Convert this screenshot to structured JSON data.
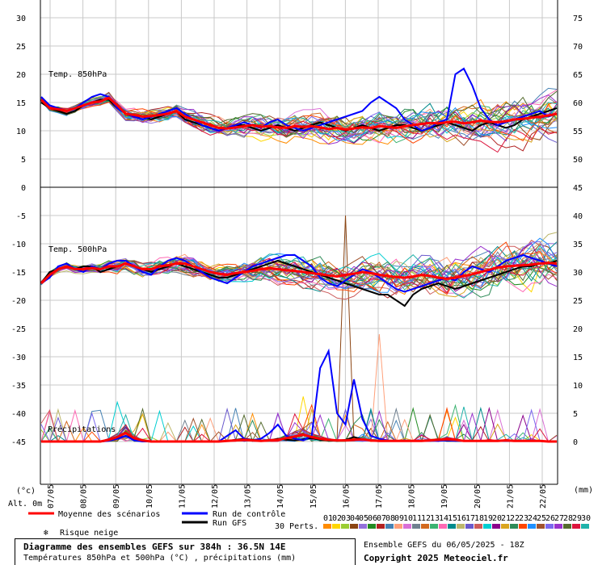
{
  "chart_data": {
    "type": "line",
    "title": "Diagramme des ensembles GEFS sur 384h : 36.5N 14E",
    "subtitle": "Températures 850hPa et 500hPa (°C) , précipitations (mm)",
    "run_info": "Ensemble GEFS du 06/05/2025 - 18Z",
    "copyright": "Copyright 2025 Meteociel.fr",
    "panel_labels": [
      "Temp. 850hPa",
      "Temp. 500hPa",
      "Précipitations"
    ],
    "left_axis": {
      "ticks": [
        30,
        25,
        20,
        15,
        10,
        5,
        0,
        -5,
        -10,
        -15,
        -20,
        -25,
        -30,
        -35,
        -40,
        -45
      ],
      "unit": "(°c)",
      "alt_label": "Alt. 0m"
    },
    "right_axis": {
      "ticks": [
        75,
        70,
        65,
        60,
        55,
        50,
        45,
        40,
        35,
        30,
        25,
        20,
        15,
        10,
        5,
        0
      ],
      "unit": "(mm)"
    },
    "x_dates": [
      "07/05",
      "08/05",
      "09/05",
      "10/05",
      "11/05",
      "12/05",
      "13/05",
      "14/05",
      "15/05",
      "16/05",
      "17/05",
      "18/05",
      "19/05",
      "20/05",
      "21/05",
      "22/05"
    ],
    "series": [
      {
        "name": "Moyenne des scénarios",
        "color": "#ff0000",
        "t850": [
          15.5,
          14,
          13.8,
          13.5,
          14,
          14.5,
          15,
          15.2,
          15.8,
          14.5,
          13,
          12.8,
          12.5,
          12.6,
          12.8,
          13,
          13.5,
          12.5,
          12,
          11.5,
          11,
          10.5,
          10.4,
          10.6,
          10.8,
          11,
          10.7,
          10.8,
          10.6,
          10.5,
          10.8,
          10.7,
          10.8,
          10.6,
          10.3,
          10.5,
          10.2,
          10.4,
          10.6,
          10.5,
          10.8,
          10.7,
          10.5,
          10.8,
          11,
          11.2,
          11.4,
          11.3,
          11.5,
          11.6,
          11.3,
          11.5,
          11.8,
          11.6,
          11.5,
          11.7,
          12,
          12.1,
          12.3,
          12.5,
          12.7,
          13
        ],
        "t500": [
          -17,
          -15.5,
          -14.5,
          -14,
          -14.5,
          -14.5,
          -14.3,
          -14.5,
          -14,
          -14,
          -13.5,
          -14,
          -14.5,
          -14.5,
          -14,
          -13.8,
          -13.5,
          -13.5,
          -14,
          -14.5,
          -15,
          -15.3,
          -15.5,
          -15.2,
          -15,
          -14.8,
          -14.5,
          -14.3,
          -14.5,
          -14.7,
          -14.8,
          -15,
          -15.2,
          -15.4,
          -15.6,
          -15.8,
          -15.5,
          -15.3,
          -15,
          -15.2,
          -15.5,
          -15.7,
          -15.9,
          -16,
          -15.8,
          -15.5,
          -15.7,
          -16,
          -16.2,
          -16,
          -15.7,
          -15.4,
          -15,
          -14.6,
          -14.2,
          -14,
          -13.9,
          -13.8,
          -13.7,
          -13.5,
          -13.4,
          -13.5
        ],
        "precip": [
          0,
          0,
          0,
          0,
          0,
          0,
          0,
          0,
          0.3,
          0.8,
          1.5,
          0.6,
          0.2,
          0,
          0,
          0,
          0,
          0,
          0,
          0,
          0,
          0,
          0.1,
          0.2,
          0.3,
          0.2,
          0.1,
          0.2,
          0.3,
          0.6,
          0.9,
          1.2,
          0.8,
          0.5,
          0.3,
          0.2,
          0.2,
          0.3,
          0.4,
          0.2,
          0.1,
          0.1,
          0.1,
          0.1,
          0.1,
          0.1,
          0.2,
          0.3,
          0.4,
          0.3,
          0.1,
          0.1,
          0.1,
          0.1,
          0.1,
          0.2,
          0.1,
          0.1,
          0.1,
          0.1,
          0,
          0
        ]
      },
      {
        "name": "Run de contrôle",
        "color": "#0000ff",
        "t850": [
          16,
          14.5,
          14,
          13.5,
          14,
          15,
          16,
          16.5,
          16,
          14,
          13,
          12.5,
          12,
          12.5,
          13,
          13.5,
          14,
          13,
          12,
          11,
          10.5,
          10,
          10.5,
          11,
          11.5,
          11,
          10.5,
          11.5,
          12,
          11,
          10.5,
          10,
          10.5,
          11,
          11.5,
          12,
          12.5,
          13,
          13.5,
          15,
          16,
          15,
          14,
          12,
          11,
          10,
          10.5,
          11.5,
          12,
          20,
          21,
          18,
          14,
          12,
          11,
          11.5,
          12,
          12.5,
          13,
          13.5,
          12.5,
          13
        ],
        "t500": [
          -17,
          -16,
          -14,
          -13.5,
          -14.5,
          -15,
          -14,
          -14.5,
          -13.5,
          -13,
          -13,
          -14,
          -15,
          -15.5,
          -14,
          -13,
          -12.5,
          -13,
          -14,
          -15,
          -16,
          -16.5,
          -17,
          -16,
          -15,
          -14,
          -13.5,
          -13,
          -12.5,
          -12,
          -12,
          -13,
          -14,
          -16,
          -17,
          -17.5,
          -16.5,
          -15.5,
          -14.5,
          -15,
          -16,
          -17,
          -18,
          -18.5,
          -18,
          -17.5,
          -17,
          -16.5,
          -16,
          -16.5,
          -15,
          -14,
          -14.5,
          -15,
          -14,
          -13,
          -12.5,
          -12,
          -12.5,
          -13,
          -13.5,
          -14
        ],
        "precip": [
          0,
          0,
          0,
          0,
          0,
          0,
          0,
          0,
          0.1,
          0.5,
          1,
          0.2,
          0,
          0,
          0,
          0,
          0,
          0,
          0,
          0,
          0,
          0,
          1,
          2,
          0.5,
          0.2,
          0.5,
          1.5,
          3,
          1,
          0.5,
          0.2,
          1,
          13,
          16,
          5,
          3,
          11,
          4,
          1,
          0.5,
          0.2,
          0.1,
          0.2,
          0.1,
          0.1,
          0.1,
          0.1,
          0.2,
          0.1,
          0.1,
          0.1,
          0.1,
          0.1,
          0.1,
          0.1,
          0.1,
          0.1,
          0.1,
          0.1,
          0,
          0
        ]
      },
      {
        "name": "Run GFS",
        "color": "#000000",
        "t850": [
          15,
          14,
          13.5,
          13,
          13.5,
          14.5,
          15,
          15.5,
          15.5,
          14,
          13,
          12.5,
          12.5,
          12,
          12.5,
          13,
          13.5,
          12,
          11.5,
          11,
          10.5,
          10,
          10.5,
          11,
          11,
          10.5,
          10,
          10.5,
          11,
          10.5,
          10,
          10.5,
          11,
          11.5,
          11,
          10.5,
          10,
          10.5,
          11,
          10.5,
          10,
          10.5,
          11,
          11,
          10.5,
          10,
          10.5,
          11,
          11.5,
          11,
          10.5,
          10,
          11,
          11.5,
          11,
          10.5,
          11,
          12,
          12.5,
          13,
          13.5,
          14
        ],
        "t500": [
          -17,
          -15,
          -14.5,
          -14,
          -14.5,
          -14,
          -14,
          -15,
          -14.5,
          -14,
          -13.5,
          -14,
          -14.5,
          -15,
          -14.5,
          -14,
          -13.5,
          -14,
          -14.5,
          -15,
          -15.5,
          -16,
          -16,
          -15.5,
          -15,
          -14.5,
          -14,
          -13.5,
          -13,
          -13.5,
          -14,
          -14.5,
          -15,
          -15.5,
          -16,
          -16.5,
          -17,
          -17.5,
          -18,
          -18.5,
          -19,
          -19,
          -20,
          -21,
          -19,
          -18,
          -17.5,
          -17,
          -17.5,
          -18,
          -17.5,
          -17,
          -16.5,
          -16,
          -15.5,
          -15,
          -14.5,
          -14,
          -14,
          -13.5,
          -13.5,
          -13
        ],
        "precip": [
          0,
          0,
          0,
          0,
          0,
          0,
          0,
          0,
          0.2,
          0.5,
          1,
          0.5,
          0.1,
          0,
          0,
          0,
          0,
          0,
          0,
          0,
          0,
          0,
          0.1,
          0.3,
          0.5,
          0.3,
          0.1,
          0.2,
          0.5,
          0.3,
          0.2,
          0.4,
          0.6,
          0.3,
          0.2,
          0.1,
          0.3,
          0.8,
          0.4,
          0.2,
          0.1,
          0.1,
          0.1,
          0.1,
          0.1,
          0.1,
          0.2,
          0.3,
          0.1,
          0.1,
          0.1,
          0.1,
          0.1,
          0.1,
          0.1,
          0.1,
          0.1,
          0.1,
          0.1,
          0.1,
          0,
          0
        ]
      }
    ],
    "legend": {
      "mean": "Moyenne des scénarios",
      "control": "Run de contrôle",
      "gfs": "Run GFS",
      "snow": "Risque neige",
      "perts": "30 Perts."
    },
    "perturbation_colors": [
      "#ff8c00",
      "#ffd700",
      "#9acd32",
      "#8b4513",
      "#9370db",
      "#228b22",
      "#b22222",
      "#4682b4",
      "#ffa07a",
      "#da70d6",
      "#708090",
      "#d2691e",
      "#3cb371",
      "#ff69b4",
      "#008b8b",
      "#bdb76b",
      "#6a5acd",
      "#cd5c5c",
      "#00ced1",
      "#8b008b",
      "#daa520",
      "#2e8b57",
      "#ff4500",
      "#1e90ff",
      "#a0522d",
      "#7b68ee",
      "#9932cc",
      "#556b2f",
      "#dc143c",
      "#20b2aa"
    ],
    "perturbation_labels": [
      "01",
      "02",
      "03",
      "04",
      "05",
      "06",
      "07",
      "08",
      "09",
      "10",
      "11",
      "12",
      "13",
      "14",
      "15",
      "16",
      "17",
      "18",
      "19",
      "20",
      "21",
      "22",
      "23",
      "24",
      "25",
      "26",
      "27",
      "28",
      "29",
      "30"
    ]
  }
}
